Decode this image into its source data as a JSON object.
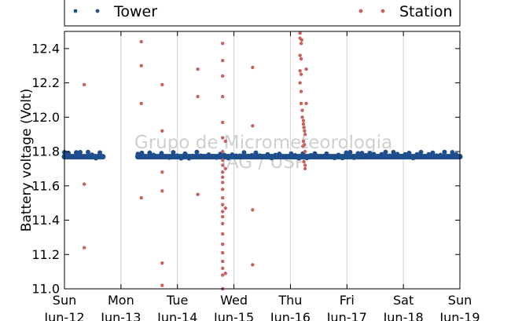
{
  "chart_data": {
    "type": "scatter",
    "title": "",
    "ylabel": "Battery voltage (Volt)",
    "xlabel": "",
    "ylim": [
      11.0,
      12.5
    ],
    "xlim_days": [
      0,
      7
    ],
    "yticks": [
      "11.0",
      "11.2",
      "11.4",
      "11.6",
      "11.8",
      "12.0",
      "12.2",
      "12.4"
    ],
    "xticks": [
      {
        "day": "Sun",
        "date": "Jun-12"
      },
      {
        "day": "Mon",
        "date": "Jun-13"
      },
      {
        "day": "Tue",
        "date": "Jun-14"
      },
      {
        "day": "Wed",
        "date": "Jun-15"
      },
      {
        "day": "Thu",
        "date": "Jun-16"
      },
      {
        "day": "Fri",
        "date": "Jun-17"
      },
      {
        "day": "Sat",
        "date": "Jun-18"
      },
      {
        "day": "Sun",
        "date": "Jun-19"
      }
    ],
    "grid": "vertical",
    "legend_position": "top",
    "watermark": [
      "Grupo de Micrometeorologia",
      "IAG / USP"
    ],
    "series": [
      {
        "name": "Tower",
        "color": "#1f4e8c",
        "segments": [
          {
            "x_start": 0.0,
            "x_end": 0.68,
            "y": 11.77
          },
          {
            "x_start": 1.3,
            "x_end": 7.0,
            "y": 11.77
          }
        ]
      },
      {
        "name": "Station",
        "color": "#c8625e",
        "points": [
          [
            0.35,
            12.19
          ],
          [
            0.35,
            11.61
          ],
          [
            0.35,
            11.24
          ],
          [
            1.36,
            12.44
          ],
          [
            1.36,
            12.3
          ],
          [
            1.36,
            12.08
          ],
          [
            1.36,
            11.53
          ],
          [
            1.73,
            12.19
          ],
          [
            1.73,
            11.92
          ],
          [
            1.73,
            11.68
          ],
          [
            1.73,
            11.57
          ],
          [
            1.73,
            11.15
          ],
          [
            1.73,
            11.02
          ],
          [
            2.36,
            12.28
          ],
          [
            2.36,
            12.12
          ],
          [
            2.36,
            11.55
          ],
          [
            2.8,
            12.43
          ],
          [
            2.8,
            12.33
          ],
          [
            2.8,
            12.24
          ],
          [
            2.8,
            12.12
          ],
          [
            2.8,
            11.97
          ],
          [
            2.8,
            11.88
          ],
          [
            2.8,
            11.8
          ],
          [
            2.8,
            11.75
          ],
          [
            2.8,
            11.72
          ],
          [
            2.8,
            11.68
          ],
          [
            2.8,
            11.65
          ],
          [
            2.8,
            11.62
          ],
          [
            2.8,
            11.58
          ],
          [
            2.8,
            11.53
          ],
          [
            2.8,
            11.49
          ],
          [
            2.8,
            11.45
          ],
          [
            2.8,
            11.42
          ],
          [
            2.8,
            11.38
          ],
          [
            2.8,
            11.32
          ],
          [
            2.8,
            11.26
          ],
          [
            2.8,
            11.21
          ],
          [
            2.8,
            11.16
          ],
          [
            2.8,
            11.12
          ],
          [
            2.8,
            11.08
          ],
          [
            2.8,
            11.0
          ],
          [
            2.85,
            11.86
          ],
          [
            2.85,
            11.7
          ],
          [
            2.85,
            11.47
          ],
          [
            2.85,
            11.09
          ],
          [
            3.33,
            12.29
          ],
          [
            3.33,
            11.95
          ],
          [
            3.33,
            11.46
          ],
          [
            3.33,
            11.14
          ],
          [
            4.17,
            12.49
          ],
          [
            4.17,
            12.46
          ],
          [
            4.19,
            12.43
          ],
          [
            4.17,
            12.36
          ],
          [
            4.19,
            12.34
          ],
          [
            4.17,
            12.27
          ],
          [
            4.19,
            12.25
          ],
          [
            4.17,
            12.2
          ],
          [
            4.19,
            12.15
          ],
          [
            4.19,
            12.08
          ],
          [
            4.21,
            12.04
          ],
          [
            4.21,
            12.0
          ],
          [
            4.23,
            11.98
          ],
          [
            4.23,
            11.96
          ],
          [
            4.24,
            11.94
          ],
          [
            4.25,
            11.92
          ],
          [
            4.26,
            11.9
          ],
          [
            4.23,
            11.86
          ],
          [
            4.25,
            11.84
          ],
          [
            4.26,
            11.8
          ],
          [
            4.24,
            11.74
          ],
          [
            4.26,
            11.72
          ],
          [
            4.26,
            11.7
          ],
          [
            4.28,
            12.28
          ],
          [
            4.28,
            12.08
          ],
          [
            4.2,
            12.45
          ],
          [
            4.22,
            11.83
          ]
        ]
      }
    ]
  }
}
